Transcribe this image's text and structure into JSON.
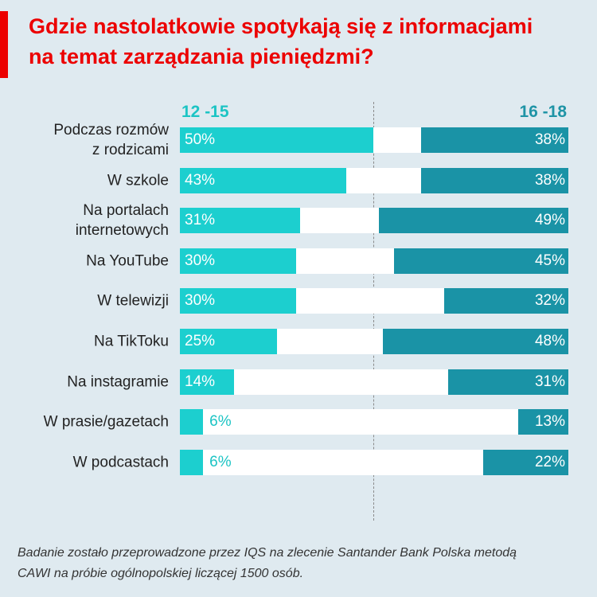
{
  "title": {
    "line1": "Gdzie nastolatkowie spotykają się z informacjami",
    "line2": "na temat zarządzania pieniędzmi?"
  },
  "colors": {
    "accent": "#ec0000",
    "series_12_15": "#1ccfcf",
    "series_16_18": "#1a93a6",
    "background": "#dfeaf0"
  },
  "chart_data": {
    "type": "bar",
    "title": "Gdzie nastolatkowie spotykają się z informacjami na temat zarządzania pieniędzmi?",
    "categories": [
      "Podczas rozmów\nz rodzicami",
      "W szkole",
      "Na portalach\ninternetowych",
      "Na YouTube",
      "W telewizji",
      "Na TikToku",
      "Na instagramie",
      "W prasie/gazetach",
      "W podcastach"
    ],
    "series": [
      {
        "name": "12 -15",
        "values": [
          50,
          43,
          31,
          30,
          30,
          25,
          14,
          6,
          6
        ],
        "labels": [
          "50%",
          "43%",
          "31%",
          "30%",
          "30%",
          "25%",
          "14%",
          "6%",
          "6%"
        ]
      },
      {
        "name": "16 -18",
        "values": [
          38,
          38,
          49,
          45,
          32,
          48,
          31,
          13,
          22
        ],
        "labels": [
          "38%",
          "38%",
          "49%",
          "45%",
          "32%",
          "48%",
          "31%",
          "13%",
          "22%"
        ]
      }
    ],
    "xlim": [
      0,
      100
    ],
    "legend": "top"
  },
  "footnote": {
    "line1": "Badanie zostało przeprowadzone przez IQS na zlecenie Santander Bank Polska metodą",
    "line2": "CAWI na próbie ogólnopolskiej liczącej 1500 osób."
  }
}
